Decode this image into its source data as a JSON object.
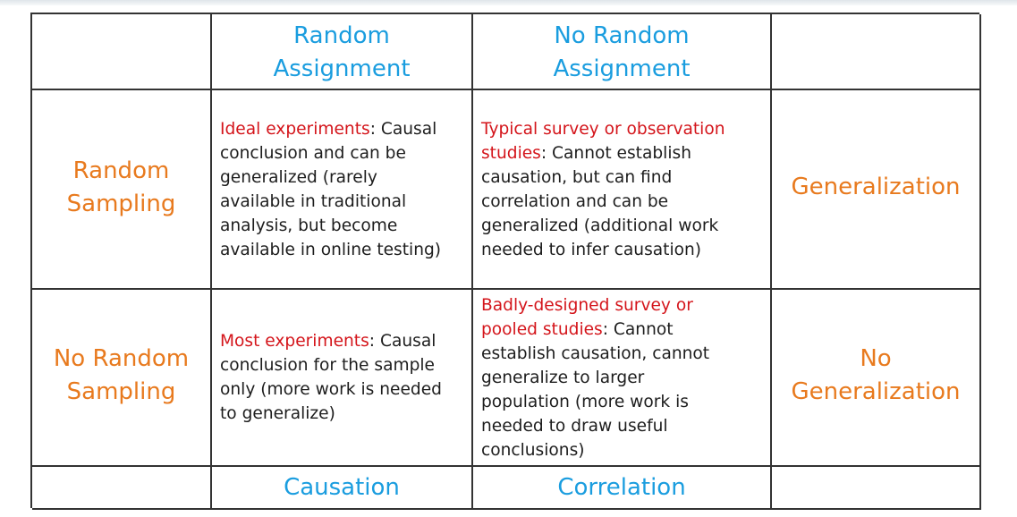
{
  "colors": {
    "column_header": "#1a9ddf",
    "row_header": "#e87a1e",
    "highlight": "#d4151b",
    "text": "#1d1d1d",
    "border": "#333333"
  },
  "columns": {
    "random_assignment": [
      "Random",
      "Assignment"
    ],
    "no_random_assignment": [
      "No Random",
      "Assignment"
    ]
  },
  "rows": {
    "random_sampling": {
      "label": [
        "Random",
        "Sampling"
      ],
      "outcome": "Generalization"
    },
    "no_random_sampling": {
      "label": [
        "No Random",
        "Sampling"
      ],
      "outcome": [
        "No",
        "Generalization"
      ]
    }
  },
  "cells": {
    "ideal": {
      "highlight": "Ideal experiments",
      "lines": [
        ": Causal",
        "conclusion and can be",
        "generalized (rarely",
        "available in traditional",
        "analysis, but become",
        "available in online testing)"
      ]
    },
    "typical": {
      "highlight": [
        "Typical survey or observation",
        "studies"
      ],
      "lines": [
        ": Cannot establish",
        "causation, but can find",
        "correlation and can be",
        "generalized (additional work",
        "needed to infer causation)"
      ]
    },
    "most": {
      "highlight": "Most experiments",
      "lines": [
        ": Causal",
        "conclusion for the sample",
        "only (more work is needed",
        "to generalize)"
      ]
    },
    "badly": {
      "highlight": [
        "Badly-designed survey or",
        "pooled studies"
      ],
      "lines": [
        ": Cannot",
        "establish causation, cannot",
        "generalize to larger",
        "population (more work is",
        "needed to draw useful",
        "conclusions)"
      ]
    }
  },
  "footer": {
    "random_assignment": "Causation",
    "no_random_assignment": "Correlation"
  }
}
